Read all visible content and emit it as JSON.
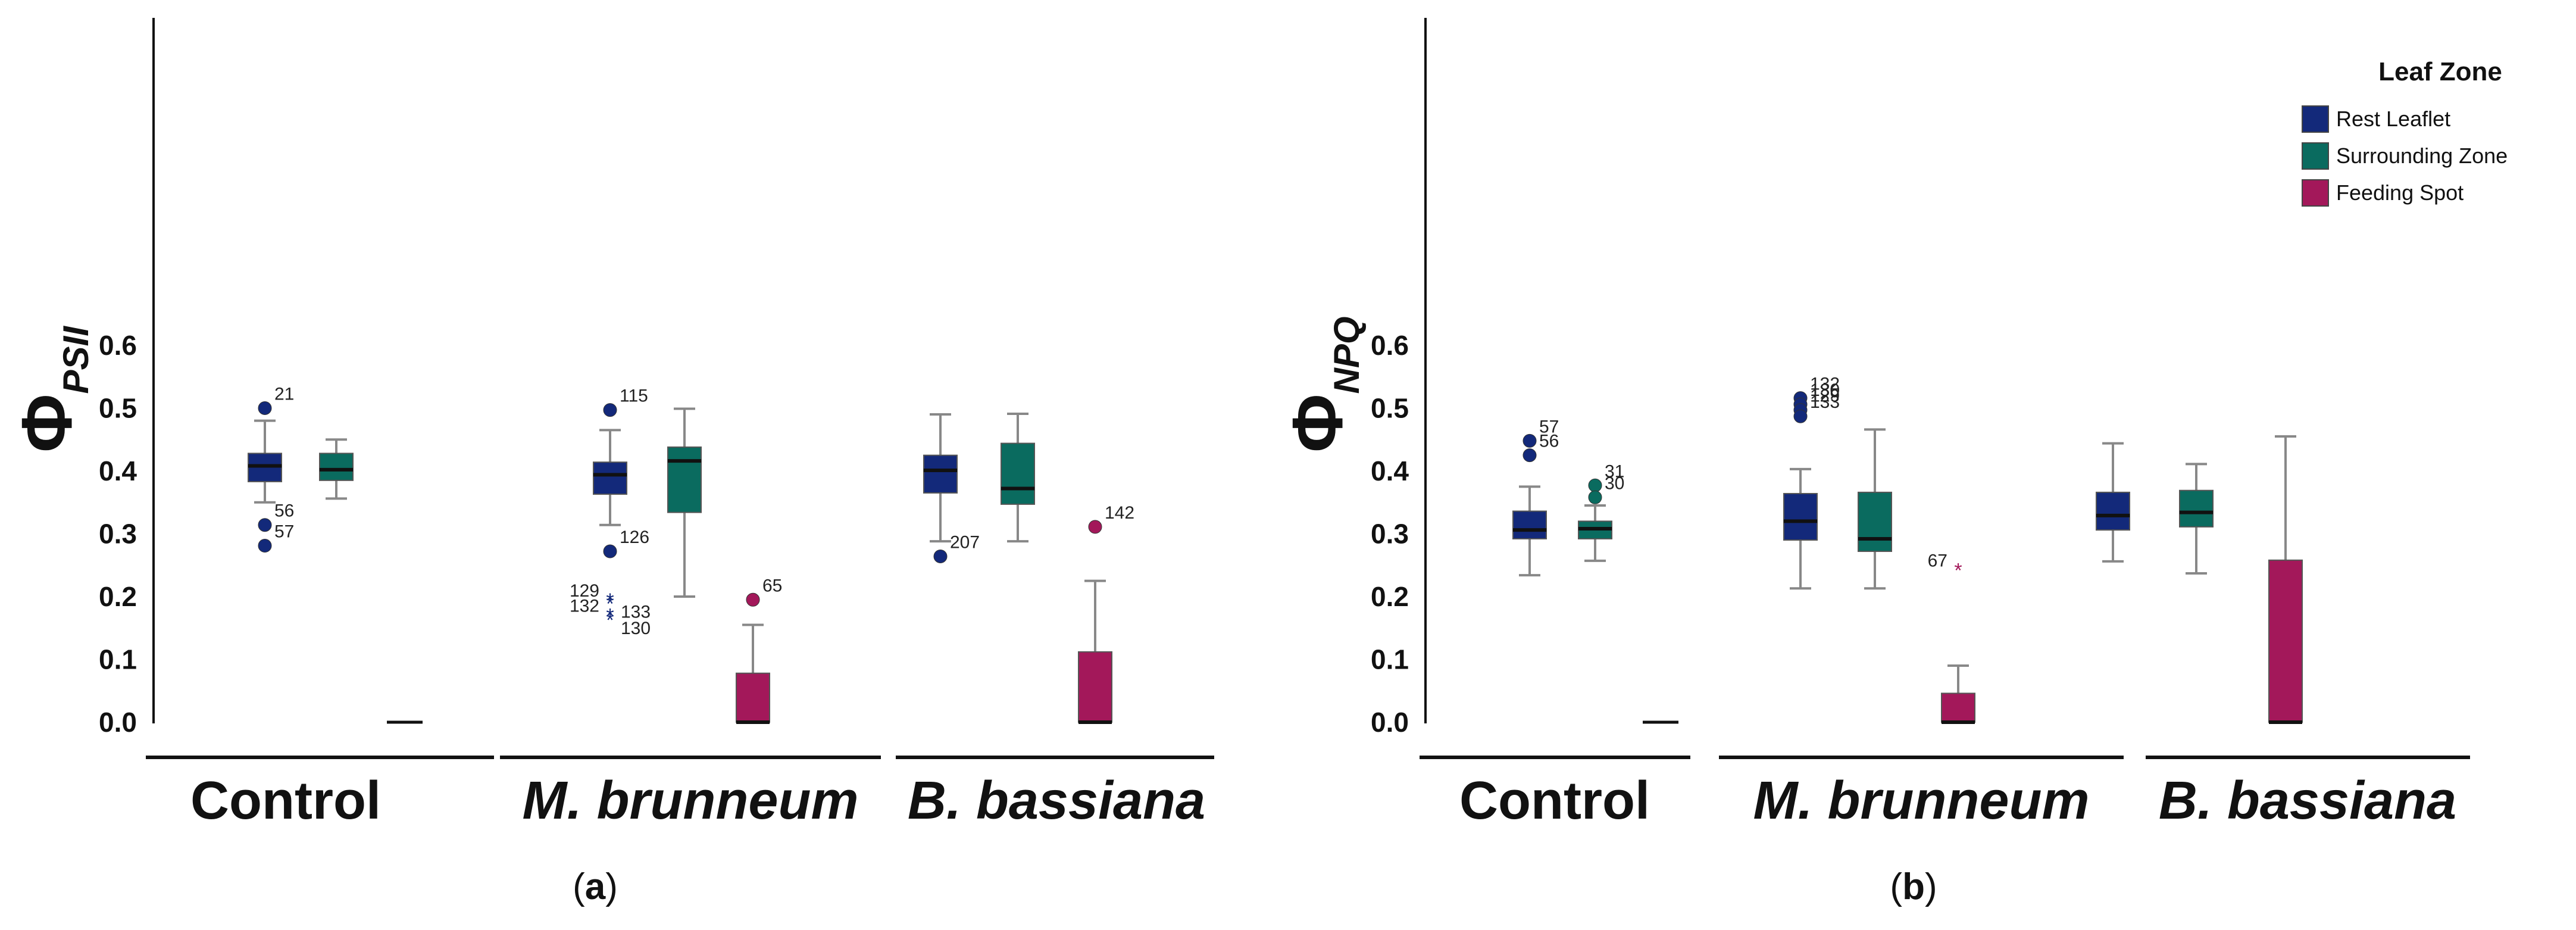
{
  "chart_data": [
    {
      "type": "box",
      "panel_label": "a",
      "ylabel": "Φ",
      "ylabel_subscript": "PSII",
      "ylim": [
        0,
        0.65
      ],
      "yticks": [
        "0.0",
        "0.1",
        "0.2",
        "0.3",
        "0.4",
        "0.5",
        "0.6"
      ],
      "grid": false,
      "groups": [
        {
          "label": "Control",
          "italic": false,
          "boxes": [
            {
              "zone": "rest",
              "whisker_low": 0.35,
              "q1": 0.383,
              "median": 0.408,
              "q3": 0.428,
              "whisker_high": 0.48,
              "outliers": [
                {
                  "value": 0.5,
                  "label": "21",
                  "marker": "circle"
                },
                {
                  "value": 0.314,
                  "label": "56",
                  "marker": "circle"
                },
                {
                  "value": 0.281,
                  "label": "57",
                  "marker": "circle"
                }
              ]
            },
            {
              "zone": "surrounding",
              "whisker_low": 0.356,
              "q1": 0.385,
              "median": 0.402,
              "q3": 0.428,
              "whisker_high": 0.45,
              "outliers": []
            },
            {
              "zone": "feeding",
              "whisker_low": 0.0,
              "q1": 0.0,
              "median": 0.0,
              "q3": 0.0,
              "whisker_high": 0.0,
              "outliers": []
            }
          ]
        },
        {
          "label": "M. brunneum",
          "italic": true,
          "boxes": [
            {
              "zone": "rest",
              "whisker_low": 0.314,
              "q1": 0.363,
              "median": 0.394,
              "q3": 0.414,
              "whisker_high": 0.465,
              "outliers": [
                {
                  "value": 0.497,
                  "label": "115",
                  "marker": "circle"
                },
                {
                  "value": 0.272,
                  "label": "126",
                  "marker": "circle"
                },
                {
                  "value": 0.196,
                  "label": "129",
                  "marker": "star"
                },
                {
                  "value": 0.191,
                  "label": "133",
                  "marker": "star"
                },
                {
                  "value": 0.172,
                  "label": "132",
                  "marker": "star"
                },
                {
                  "value": 0.165,
                  "label": "130",
                  "marker": "star"
                }
              ]
            },
            {
              "zone": "surrounding",
              "whisker_low": 0.2,
              "q1": 0.334,
              "median": 0.416,
              "q3": 0.438,
              "whisker_high": 0.499,
              "outliers": []
            },
            {
              "zone": "feeding",
              "whisker_low": 0.0,
              "q1": 0.0,
              "median": 0.0,
              "q3": 0.078,
              "whisker_high": 0.155,
              "outliers": [
                {
                  "value": 0.195,
                  "label": "65",
                  "marker": "circle"
                }
              ]
            }
          ]
        },
        {
          "label": "B. bassiana",
          "italic": true,
          "boxes": [
            {
              "zone": "rest",
              "whisker_low": 0.288,
              "q1": 0.365,
              "median": 0.401,
              "q3": 0.425,
              "whisker_high": 0.49,
              "outliers": [
                {
                  "value": 0.264,
                  "label": "207",
                  "marker": "circle"
                }
              ]
            },
            {
              "zone": "surrounding",
              "whisker_low": 0.288,
              "q1": 0.347,
              "median": 0.372,
              "q3": 0.444,
              "whisker_high": 0.491,
              "outliers": []
            },
            {
              "zone": "feeding",
              "whisker_low": 0.0,
              "q1": 0.0,
              "median": 0.0,
              "q3": 0.112,
              "whisker_high": 0.225,
              "outliers": [
                {
                  "value": 0.311,
                  "label": "142",
                  "marker": "circle"
                }
              ]
            }
          ]
        }
      ]
    },
    {
      "type": "box",
      "panel_label": "b",
      "ylabel": "Φ",
      "ylabel_subscript": "NPQ",
      "ylim": [
        0,
        0.65
      ],
      "yticks": [
        "0.0",
        "0.1",
        "0.2",
        "0.3",
        "0.4",
        "0.5",
        "0.6"
      ],
      "grid": false,
      "groups": [
        {
          "label": "Control",
          "italic": false,
          "boxes": [
            {
              "zone": "rest",
              "whisker_low": 0.234,
              "q1": 0.292,
              "median": 0.306,
              "q3": 0.336,
              "whisker_high": 0.375,
              "outliers": [
                {
                  "value": 0.448,
                  "label": "57",
                  "marker": "circle"
                },
                {
                  "value": 0.425,
                  "label": "56",
                  "marker": "circle"
                }
              ]
            },
            {
              "zone": "surrounding",
              "whisker_low": 0.257,
              "q1": 0.292,
              "median": 0.308,
              "q3": 0.32,
              "whisker_high": 0.345,
              "outliers": [
                {
                  "value": 0.377,
                  "label": "31",
                  "marker": "circle"
                },
                {
                  "value": 0.358,
                  "label": "30",
                  "marker": "circle"
                }
              ]
            },
            {
              "zone": "feeding",
              "whisker_low": 0.0,
              "q1": 0.0,
              "median": 0.0,
              "q3": 0.0,
              "whisker_high": 0.0,
              "outliers": []
            }
          ]
        },
        {
          "label": "M. brunneum",
          "italic": true,
          "boxes": [
            {
              "zone": "rest",
              "whisker_low": 0.213,
              "q1": 0.29,
              "median": 0.32,
              "q3": 0.364,
              "whisker_high": 0.403,
              "outliers": [
                {
                  "value": 0.516,
                  "label": "132",
                  "marker": "circle"
                },
                {
                  "value": 0.506,
                  "label": "130",
                  "marker": "circle"
                },
                {
                  "value": 0.497,
                  "label": "129",
                  "marker": "circle"
                },
                {
                  "value": 0.487,
                  "label": "133",
                  "marker": "circle"
                }
              ]
            },
            {
              "zone": "surrounding",
              "whisker_low": 0.213,
              "q1": 0.272,
              "median": 0.292,
              "q3": 0.366,
              "whisker_high": 0.466,
              "outliers": []
            },
            {
              "zone": "feeding",
              "whisker_low": 0.0,
              "q1": 0.0,
              "median": 0.0,
              "q3": 0.046,
              "whisker_high": 0.09,
              "outliers": [
                {
                  "value": 0.244,
                  "label": "67",
                  "marker": "star"
                }
              ]
            }
          ]
        },
        {
          "label": "B. bassiana",
          "italic": true,
          "boxes": [
            {
              "zone": "rest",
              "whisker_low": 0.256,
              "q1": 0.306,
              "median": 0.329,
              "q3": 0.366,
              "whisker_high": 0.444,
              "outliers": []
            },
            {
              "zone": "surrounding",
              "whisker_low": 0.237,
              "q1": 0.311,
              "median": 0.334,
              "q3": 0.369,
              "whisker_high": 0.411,
              "outliers": []
            },
            {
              "zone": "feeding",
              "whisker_low": 0.0,
              "q1": 0.0,
              "median": 0.0,
              "q3": 0.258,
              "whisker_high": 0.455,
              "outliers": []
            }
          ]
        }
      ]
    }
  ],
  "legend": {
    "title": "Leaf Zone",
    "placement": "top-right",
    "items": [
      {
        "zone": "rest",
        "label": "Rest Leaflet",
        "color": "#13297a"
      },
      {
        "zone": "surrounding",
        "label": "Surrounding Zone",
        "color": "#0a6b5f"
      },
      {
        "zone": "feeding",
        "label": "Feeding Spot",
        "color": "#a3185a"
      }
    ]
  },
  "colors": {
    "rest": "#13297a",
    "surrounding": "#0a6b5f",
    "feeding": "#a3185a",
    "axis": "#111111",
    "whisker": "#888888"
  }
}
